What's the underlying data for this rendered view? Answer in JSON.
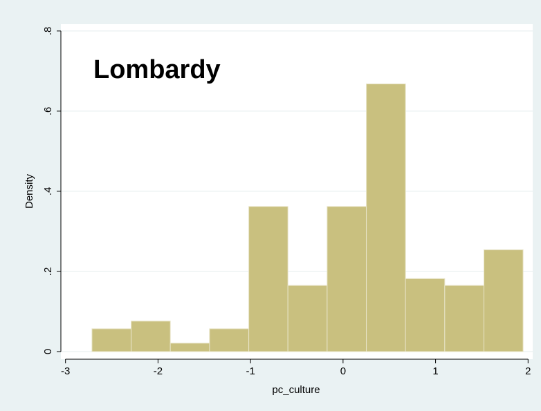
{
  "chart_data": {
    "type": "histogram",
    "annotation": "Lombardy",
    "xlabel": "pc_culture",
    "ylabel": "Density",
    "bins": [
      -2.714,
      -2.29,
      -1.867,
      -1.443,
      -1.019,
      -0.596,
      -0.172,
      0.252,
      0.675,
      1.099,
      1.523,
      1.946
    ],
    "values": [
      0.057,
      0.076,
      0.021,
      0.057,
      0.362,
      0.165,
      0.362,
      0.668,
      0.182,
      0.165,
      0.254
    ],
    "color": "#c9c07f",
    "xlim": [
      -3.05,
      2.05
    ],
    "xticks": [
      -3,
      -2,
      -1,
      0,
      1,
      2
    ],
    "ylim": [
      -0.019,
      0.817
    ],
    "yticks": [
      0,
      {
        "value": 0.2,
        "label": ".2"
      },
      {
        "value": 0.4,
        "label": ".4"
      },
      {
        "value": 0.6,
        "label": ".6"
      },
      {
        "value": 0.8,
        "label": ".8"
      }
    ],
    "grid": true
  }
}
